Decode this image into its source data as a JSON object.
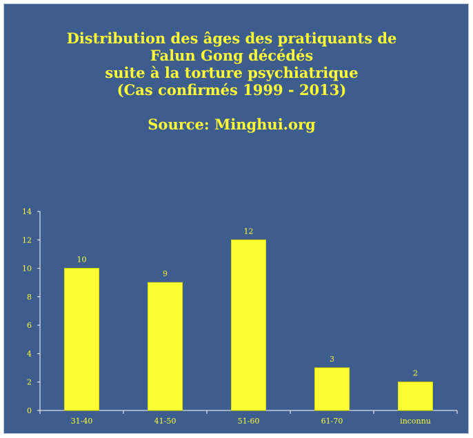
{
  "chart_data": {
    "type": "bar",
    "title_lines": [
      "Distribution des âges des pratiquants de",
      "Falun Gong décédés",
      "suite à la torture psychiatrique",
      "(Cas confirmés 1999 - 2013)"
    ],
    "source": "Source: Minghui.org",
    "categories": [
      "31-40",
      "41-50",
      "51-60",
      "61-70",
      "inconnu"
    ],
    "values": [
      10,
      9,
      12,
      3,
      2
    ],
    "ylim": [
      0,
      14
    ],
    "yticks": [
      0,
      2,
      4,
      6,
      8,
      10,
      12,
      14
    ],
    "grid": false,
    "data_labels": true,
    "colors": {
      "background": "#3d5d8e",
      "bar": "#ffff33",
      "bar_border": "#dada00",
      "text": "#ffff33",
      "axis": "#ffffff"
    }
  }
}
